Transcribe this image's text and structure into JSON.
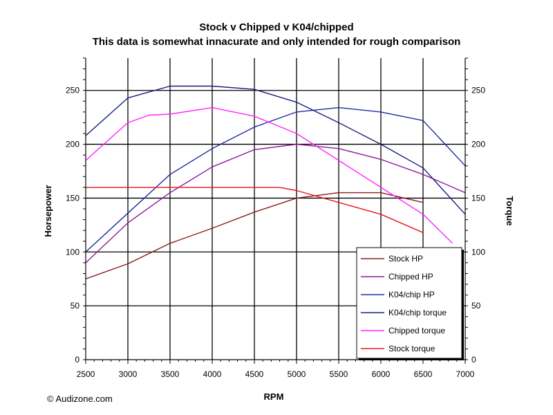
{
  "chart_data": {
    "type": "line",
    "title": "Stock v Chipped v K04/chipped",
    "subtitle": "This data is somewhat innacurate and only intended for rough comparison",
    "xlabel": "RPM",
    "ylabel": "Horsepower",
    "y2label": "Torque",
    "xlim": [
      2500,
      7000
    ],
    "ylim": [
      0,
      280
    ],
    "x_ticks": [
      2500,
      3000,
      3500,
      4000,
      4500,
      5000,
      5500,
      6000,
      6500,
      7000
    ],
    "y_ticks": [
      0,
      50,
      100,
      150,
      200,
      250
    ],
    "y2_ticks": [
      0,
      50,
      100,
      150,
      200,
      250
    ],
    "grid": true,
    "legend_position": "bottom-right",
    "series": [
      {
        "name": "Stock HP",
        "color": "#8b1a1a",
        "x": [
          2500,
          3000,
          3500,
          4000,
          4500,
          5000,
          5500,
          6000,
          6500
        ],
        "y": [
          75,
          89,
          108,
          122,
          137,
          150,
          155,
          155,
          146
        ]
      },
      {
        "name": "Chipped HP",
        "color": "#8b1a9a",
        "x": [
          2500,
          3000,
          3500,
          4000,
          4500,
          5000,
          5500,
          6000,
          6500,
          7000
        ],
        "y": [
          90,
          127,
          155,
          179,
          195,
          200,
          196,
          186,
          172,
          155
        ]
      },
      {
        "name": "K04/chip HP",
        "color": "#1f2aa0",
        "x": [
          2500,
          3000,
          3500,
          4000,
          4500,
          5000,
          5500,
          6000,
          6500,
          7000
        ],
        "y": [
          100,
          136,
          172,
          196,
          216,
          230,
          234,
          230,
          222,
          180
        ]
      },
      {
        "name": "K04/chip torque",
        "color": "#141e78",
        "x": [
          2500,
          3000,
          3500,
          4000,
          4500,
          5000,
          5500,
          6000,
          6500,
          7000
        ],
        "y": [
          208,
          243,
          254,
          254,
          251,
          239,
          220,
          200,
          178,
          135
        ]
      },
      {
        "name": "Chipped torque",
        "color": "#ff22ff",
        "x": [
          2500,
          3000,
          3250,
          3500,
          4000,
          4500,
          5000,
          5500,
          6000,
          6500,
          6850
        ],
        "y": [
          185,
          220,
          227,
          228,
          234,
          226,
          210,
          185,
          160,
          135,
          108
        ]
      },
      {
        "name": "Stock torque",
        "color": "#e8141e",
        "x": [
          2500,
          3000,
          3500,
          4000,
          4500,
          4800,
          5000,
          5500,
          6000,
          6500
        ],
        "y": [
          160,
          160,
          160,
          160,
          160,
          160,
          157,
          146,
          135,
          118
        ]
      }
    ]
  },
  "footer": {
    "copyright": "© Audizone.com"
  }
}
